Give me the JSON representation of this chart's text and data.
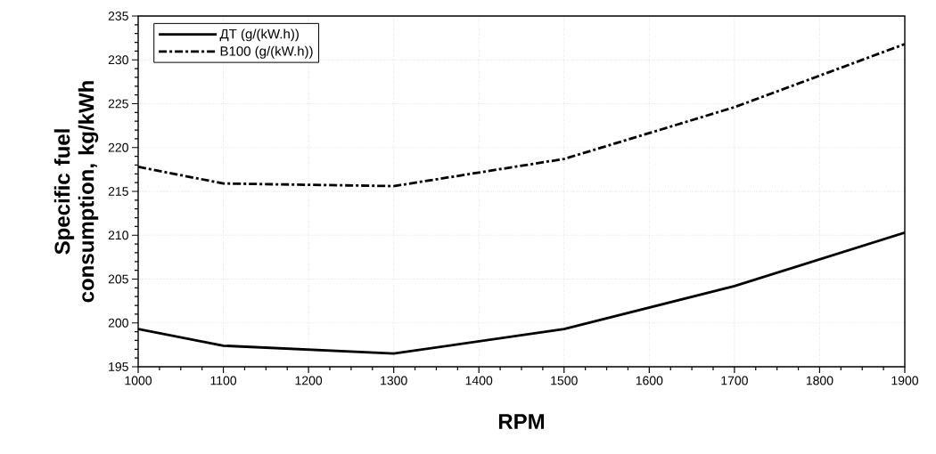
{
  "chart_data": {
    "type": "line",
    "xlabel": "RPM",
    "ylabel": "Specific fuel consumption, kg/kWh",
    "x": [
      1000,
      1100,
      1300,
      1500,
      1700,
      1900
    ],
    "series": [
      {
        "name": "ДТ (g/(kW.h))",
        "color": "#000000",
        "line_style": "solid",
        "values": [
          199.3,
          197.4,
          196.5,
          199.3,
          204.2,
          210.3
        ]
      },
      {
        "name": "B100 (g/(kW.h))",
        "color": "#000000",
        "line_style": "dashdot",
        "values": [
          217.8,
          215.9,
          215.6,
          218.7,
          224.6,
          231.8
        ]
      }
    ],
    "xlim": [
      1000,
      1900
    ],
    "xticks": [
      1000,
      1100,
      1200,
      1300,
      1400,
      1500,
      1600,
      1700,
      1800,
      1900
    ],
    "ylim": [
      195,
      235
    ],
    "yticks": [
      195,
      200,
      205,
      210,
      215,
      220,
      225,
      230,
      235
    ],
    "grid": true,
    "legend": "top left",
    "marker": "none"
  }
}
